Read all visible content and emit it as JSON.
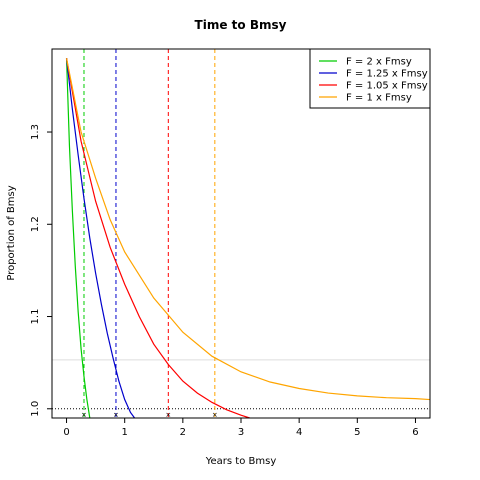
{
  "chart_data": {
    "type": "line",
    "title": "Time to Bmsy",
    "xlabel": "Years to Bmsy",
    "ylabel": "Proportion of Bmsy",
    "xlim": [
      -0.25,
      6.25
    ],
    "ylim": [
      0.99,
      1.39
    ],
    "xticks": [
      0,
      1,
      2,
      3,
      4,
      5,
      6
    ],
    "yticks": [
      1.0,
      1.1,
      1.2,
      1.3
    ],
    "xtick_labels": [
      "0",
      "1",
      "2",
      "3",
      "4",
      "5",
      "6"
    ],
    "ytick_labels": [
      "1.0",
      "1.1",
      "1.2",
      "1.3"
    ],
    "reference_lines": {
      "horizontal_dotted": 1.0,
      "horizontal_light": 1.053
    },
    "legend": {
      "placement": "top-right"
    },
    "series": [
      {
        "name": "F = 2 x Fmsy",
        "color": "#00cc00",
        "x": [
          0,
          0.05,
          0.1,
          0.15,
          0.2,
          0.25,
          0.3,
          0.35,
          0.4
        ],
        "y": [
          1.38,
          1.285,
          1.215,
          1.155,
          1.105,
          1.065,
          1.035,
          1.01,
          0.99
        ],
        "marker_x": 0.3
      },
      {
        "name": "F = 1.25 x Fmsy",
        "color": "#0000cc",
        "x": [
          0,
          0.1,
          0.2,
          0.3,
          0.4,
          0.5,
          0.6,
          0.7,
          0.8,
          0.9,
          1.0,
          1.1,
          1.17
        ],
        "y": [
          1.38,
          1.325,
          1.275,
          1.228,
          1.185,
          1.147,
          1.113,
          1.082,
          1.055,
          1.03,
          1.01,
          0.996,
          0.99
        ],
        "marker_x": 0.85
      },
      {
        "name": "F = 1.05 x Fmsy",
        "color": "#ff0000",
        "x": [
          0,
          0.25,
          0.5,
          0.75,
          1.0,
          1.25,
          1.5,
          1.75,
          2.0,
          2.25,
          2.5,
          2.75,
          3.0,
          3.15
        ],
        "y": [
          1.38,
          1.29,
          1.225,
          1.175,
          1.135,
          1.1,
          1.07,
          1.048,
          1.03,
          1.017,
          1.007,
          0.999,
          0.993,
          0.99
        ],
        "marker_x": 1.75
      },
      {
        "name": "F = 1 x Fmsy",
        "color": "#ffa500",
        "x": [
          0,
          0.25,
          0.5,
          0.75,
          1.0,
          1.5,
          2.0,
          2.5,
          3.0,
          3.5,
          4.0,
          4.5,
          5.0,
          5.5,
          6.0,
          6.25
        ],
        "y": [
          1.38,
          1.3,
          1.25,
          1.205,
          1.17,
          1.12,
          1.083,
          1.057,
          1.04,
          1.029,
          1.022,
          1.017,
          1.014,
          1.012,
          1.011,
          1.01
        ],
        "marker_x": 2.55
      }
    ]
  }
}
